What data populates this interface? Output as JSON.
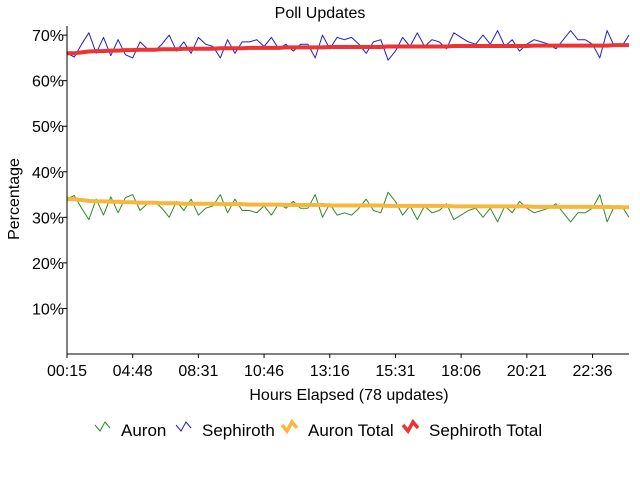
{
  "chart_data": {
    "type": "line",
    "title": "Poll Updates",
    "xlabel": "Hours Elapsed (78 updates)",
    "ylabel": "Percentage",
    "ylim": [
      0,
      72
    ],
    "yticks": [
      10,
      20,
      30,
      40,
      50,
      60,
      70
    ],
    "ytick_labels": [
      "10%",
      "20%",
      "30%",
      "40%",
      "50%",
      "60%",
      "70%"
    ],
    "x_count": 78,
    "xticks": [
      0,
      9,
      18,
      27,
      36,
      45,
      54,
      63,
      72
    ],
    "xtick_labels": [
      "00:15",
      "04:48",
      "08:31",
      "10:46",
      "13:16",
      "15:31",
      "18:06",
      "20:21",
      "22:36"
    ],
    "grid": false,
    "legend_position": "bottom",
    "series": [
      {
        "name": "Auron",
        "color": "#2e8b2e",
        "values": [
          34,
          34.8,
          32,
          29.5,
          34,
          30.5,
          34.5,
          31,
          34.3,
          35,
          31.5,
          33,
          33.5,
          32,
          30,
          33.5,
          31.5,
          34,
          30.5,
          32,
          32.5,
          35,
          31,
          34,
          31.5,
          31.5,
          31,
          32.5,
          30.5,
          33,
          32,
          33.5,
          32,
          32,
          35,
          30,
          33,
          30.5,
          31,
          30.5,
          32,
          34,
          31.5,
          31,
          35.5,
          33.5,
          30.5,
          32.5,
          29.5,
          32.5,
          31,
          31.5,
          33,
          29.5,
          30.5,
          31.5,
          32,
          30,
          32,
          29,
          32.5,
          31,
          33.5,
          32,
          31,
          31.5,
          32,
          33,
          31,
          29,
          31,
          31,
          32,
          35,
          29,
          32.5,
          32.5,
          30
        ]
      },
      {
        "name": "Sephiroth",
        "color": "#1f1fcc",
        "values": [
          66,
          65.2,
          68,
          70.5,
          66,
          69.5,
          65.5,
          69,
          65.7,
          65,
          68.5,
          67,
          66.5,
          68,
          70,
          66.5,
          68.5,
          66,
          69.5,
          68,
          67.5,
          65,
          69,
          66,
          68.5,
          68.5,
          69,
          67.5,
          69.5,
          67,
          68,
          66.5,
          68,
          68,
          65,
          70,
          67,
          69.5,
          69,
          69.5,
          68,
          66,
          68.5,
          69,
          64.5,
          66.5,
          69.5,
          67.5,
          70.5,
          67.5,
          69,
          68.5,
          67,
          70.5,
          69.5,
          68.5,
          68,
          70,
          68,
          71,
          67.5,
          69,
          66.5,
          68,
          69,
          68.5,
          68,
          67,
          69,
          71,
          69,
          69,
          68,
          65,
          71,
          67.5,
          67.5,
          70
        ]
      },
      {
        "name": "Auron Total",
        "color": "#f5b83d",
        "values": [
          34,
          34,
          33.8,
          33.6,
          33.5,
          33.5,
          33.4,
          33.4,
          33.3,
          33.3,
          33.2,
          33.2,
          33.2,
          33.1,
          33.1,
          33.1,
          33,
          33,
          33,
          33,
          33,
          32.9,
          32.9,
          32.9,
          32.9,
          32.8,
          32.8,
          32.8,
          32.8,
          32.8,
          32.7,
          32.7,
          32.7,
          32.7,
          32.7,
          32.7,
          32.6,
          32.6,
          32.6,
          32.6,
          32.6,
          32.6,
          32.6,
          32.6,
          32.5,
          32.5,
          32.5,
          32.5,
          32.5,
          32.5,
          32.5,
          32.5,
          32.5,
          32.4,
          32.4,
          32.4,
          32.4,
          32.4,
          32.4,
          32.4,
          32.4,
          32.4,
          32.4,
          32.4,
          32.3,
          32.3,
          32.3,
          32.3,
          32.3,
          32.3,
          32.3,
          32.3,
          32.3,
          32.3,
          32.3,
          32.2,
          32.2,
          32.2
        ]
      },
      {
        "name": "Sephiroth Total",
        "color": "#ee3333",
        "values": [
          66,
          66,
          66.2,
          66.4,
          66.5,
          66.5,
          66.6,
          66.6,
          66.7,
          66.7,
          66.8,
          66.8,
          66.8,
          66.9,
          66.9,
          66.9,
          67,
          67,
          67,
          67,
          67,
          67.1,
          67.1,
          67.1,
          67.1,
          67.2,
          67.2,
          67.2,
          67.2,
          67.2,
          67.3,
          67.3,
          67.3,
          67.3,
          67.3,
          67.3,
          67.4,
          67.4,
          67.4,
          67.4,
          67.4,
          67.4,
          67.4,
          67.4,
          67.5,
          67.5,
          67.5,
          67.5,
          67.5,
          67.5,
          67.5,
          67.5,
          67.5,
          67.6,
          67.6,
          67.6,
          67.6,
          67.6,
          67.6,
          67.6,
          67.6,
          67.6,
          67.6,
          67.6,
          67.7,
          67.7,
          67.7,
          67.7,
          67.7,
          67.7,
          67.7,
          67.7,
          67.7,
          67.7,
          67.7,
          67.8,
          67.8,
          67.8
        ]
      }
    ]
  }
}
